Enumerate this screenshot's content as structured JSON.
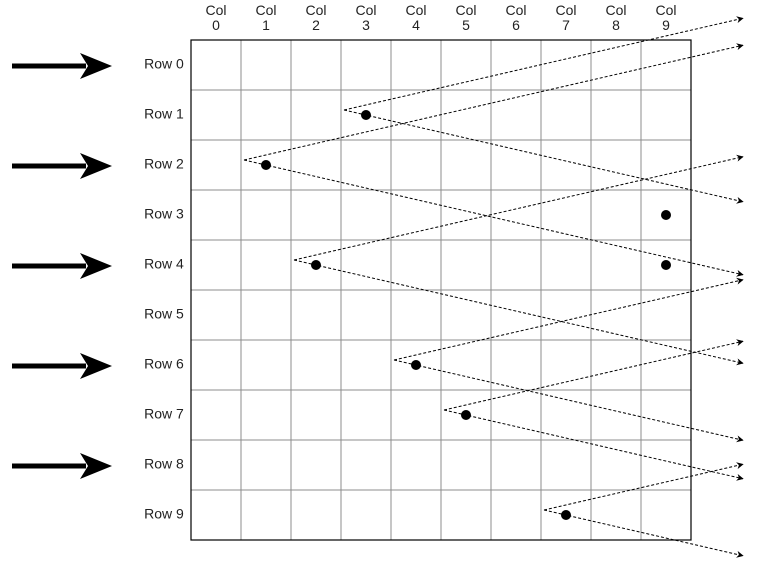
{
  "rows": [
    "Row 0",
    "Row 1",
    "Row 2",
    "Row 3",
    "Row 4",
    "Row 5",
    "Row 6",
    "Row 7",
    "Row 8",
    "Row 9"
  ],
  "columns": [
    {
      "line1": "Col",
      "line2": "0"
    },
    {
      "line1": "Col",
      "line2": "1"
    },
    {
      "line1": "Col",
      "line2": "2"
    },
    {
      "line1": "Col",
      "line2": "3"
    },
    {
      "line1": "Col",
      "line2": "4"
    },
    {
      "line1": "Col",
      "line2": "5"
    },
    {
      "line1": "Col",
      "line2": "6"
    },
    {
      "line1": "Col",
      "line2": "7"
    },
    {
      "line1": "Col",
      "line2": "8"
    },
    {
      "line1": "Col",
      "line2": "9"
    }
  ],
  "row_arrows": [
    0,
    2,
    4,
    6,
    8
  ],
  "dots": [
    {
      "row": 1,
      "col": 3
    },
    {
      "row": 2,
      "col": 1
    },
    {
      "row": 3,
      "col": 9
    },
    {
      "row": 4,
      "col": 2
    },
    {
      "row": 4,
      "col": 9
    },
    {
      "row": 6,
      "col": 4
    },
    {
      "row": 7,
      "col": 5
    },
    {
      "row": 9,
      "col": 7
    }
  ],
  "colors": {
    "grid": "#8c8c8c",
    "border": "#000000",
    "ink": "#000000",
    "text": "#222222"
  }
}
